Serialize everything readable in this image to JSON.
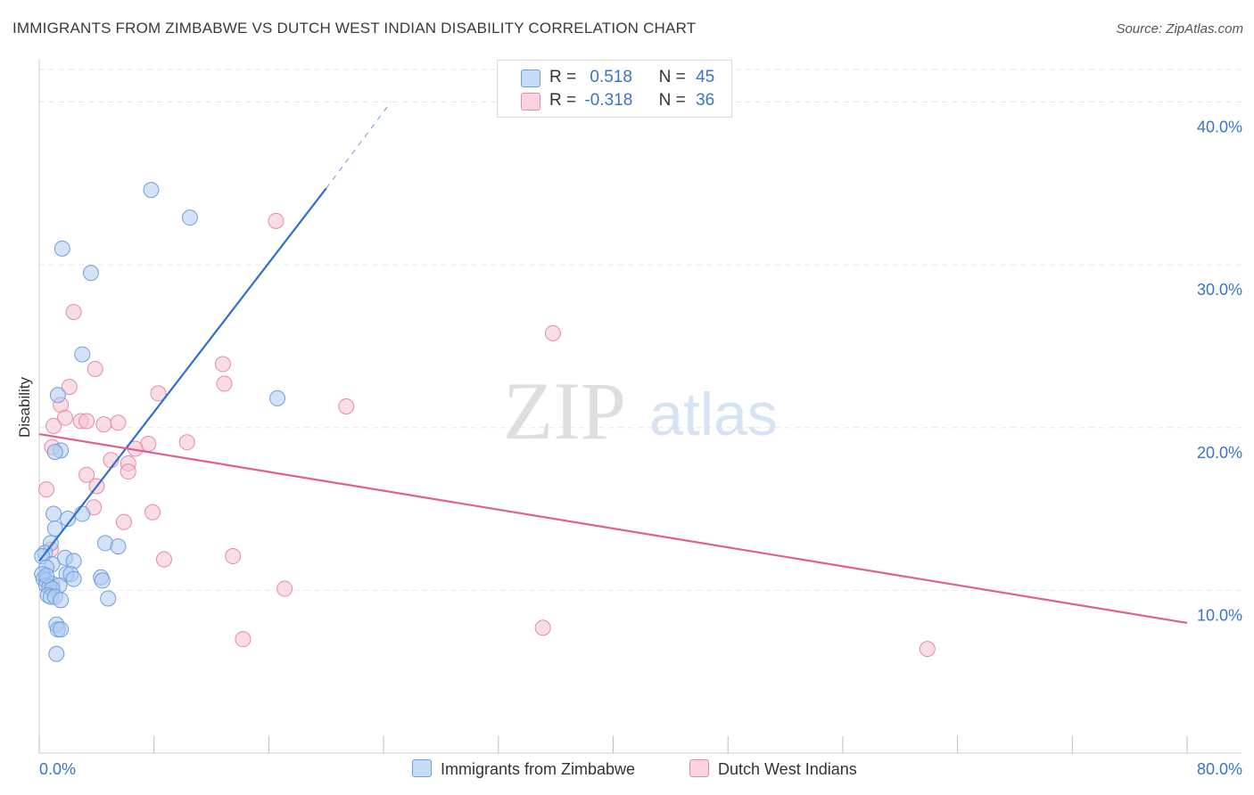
{
  "title": "IMMIGRANTS FROM ZIMBABWE VS DUTCH WEST INDIAN DISABILITY CORRELATION CHART",
  "source": "Source: ZipAtlas.com",
  "watermark": {
    "zip": "ZIP",
    "atlas": "atlas"
  },
  "legend": {
    "r_label": "R =",
    "n_label": "N =",
    "rows": [
      {
        "r": "0.518",
        "n": "45"
      },
      {
        "r": "-0.318",
        "n": "36"
      }
    ]
  },
  "colors": {
    "blue_fill": "#aecbf0",
    "blue_stroke": "#6f9fdc",
    "blue_line": "#2f6fd0",
    "pink_fill": "#f6bfd0",
    "pink_stroke": "#e68aa8",
    "pink_line": "#e0608a",
    "grid": "#e6e6e6",
    "tick_label": "#3a74c4"
  },
  "chart_data": {
    "type": "scatter",
    "title": "IMMIGRANTS FROM ZIMBABWE VS DUTCH WEST INDIAN DISABILITY CORRELATION CHART",
    "xlabel": "",
    "ylabel": "Disability",
    "xlim": [
      0,
      80
    ],
    "ylim": [
      0,
      42
    ],
    "x_tick_labels": [
      "0.0%",
      "80.0%"
    ],
    "y_ticks": [
      10,
      20,
      30,
      40
    ],
    "y_tick_labels": [
      "10.0%",
      "20.0%",
      "30.0%",
      "40.0%"
    ],
    "grid": true,
    "legend_position": "bottom-center",
    "series": [
      {
        "name": "Immigrants from Zimbabwe",
        "r": 0.518,
        "n": 45,
        "trend": {
          "x0": 0,
          "y0": 11.8,
          "x1": 20,
          "y1": 34.7,
          "dashed_to_x": 24.5,
          "dashed_to_y": 40.0
        },
        "points": [
          [
            7.8,
            34.6
          ],
          [
            10.5,
            32.9
          ],
          [
            1.6,
            31.0
          ],
          [
            3.6,
            29.5
          ],
          [
            3.0,
            24.5
          ],
          [
            16.6,
            21.8
          ],
          [
            1.3,
            22.0
          ],
          [
            1.5,
            18.6
          ],
          [
            1.1,
            18.5
          ],
          [
            1.0,
            14.7
          ],
          [
            3.0,
            14.7
          ],
          [
            2.0,
            14.4
          ],
          [
            1.1,
            13.8
          ],
          [
            4.6,
            12.9
          ],
          [
            5.5,
            12.7
          ],
          [
            0.8,
            12.9
          ],
          [
            0.4,
            12.3
          ],
          [
            0.2,
            12.1
          ],
          [
            1.8,
            12.0
          ],
          [
            2.4,
            11.8
          ],
          [
            0.9,
            11.6
          ],
          [
            0.5,
            11.4
          ],
          [
            0.2,
            11.0
          ],
          [
            1.9,
            11.0
          ],
          [
            2.2,
            11.0
          ],
          [
            0.3,
            10.7
          ],
          [
            0.5,
            10.6
          ],
          [
            2.4,
            10.7
          ],
          [
            4.3,
            10.8
          ],
          [
            4.4,
            10.6
          ],
          [
            0.9,
            10.4
          ],
          [
            0.5,
            10.3
          ],
          [
            1.4,
            10.3
          ],
          [
            0.7,
            10.2
          ],
          [
            0.9,
            10.1
          ],
          [
            0.6,
            9.7
          ],
          [
            0.8,
            9.6
          ],
          [
            1.1,
            9.6
          ],
          [
            1.5,
            9.4
          ],
          [
            4.8,
            9.5
          ],
          [
            1.2,
            7.9
          ],
          [
            1.3,
            7.6
          ],
          [
            1.5,
            7.6
          ],
          [
            1.2,
            6.1
          ],
          [
            0.5,
            10.9
          ]
        ]
      },
      {
        "name": "Dutch West Indians",
        "r": -0.318,
        "n": 36,
        "trend": {
          "x0": 0,
          "y0": 19.6,
          "x1": 80,
          "y1": 8.0
        },
        "points": [
          [
            16.5,
            32.7
          ],
          [
            2.4,
            27.1
          ],
          [
            35.8,
            25.8
          ],
          [
            3.9,
            23.6
          ],
          [
            12.8,
            23.9
          ],
          [
            2.1,
            22.5
          ],
          [
            12.9,
            22.7
          ],
          [
            8.3,
            22.1
          ],
          [
            21.4,
            21.3
          ],
          [
            1.5,
            21.4
          ],
          [
            1.8,
            20.6
          ],
          [
            2.9,
            20.4
          ],
          [
            3.3,
            20.4
          ],
          [
            4.5,
            20.2
          ],
          [
            5.5,
            20.3
          ],
          [
            1.0,
            20.1
          ],
          [
            10.3,
            19.1
          ],
          [
            7.6,
            19.0
          ],
          [
            0.9,
            18.8
          ],
          [
            6.7,
            18.7
          ],
          [
            5.0,
            18.0
          ],
          [
            6.2,
            17.8
          ],
          [
            6.2,
            17.3
          ],
          [
            3.3,
            17.1
          ],
          [
            4.0,
            16.4
          ],
          [
            0.5,
            16.2
          ],
          [
            3.8,
            15.1
          ],
          [
            7.9,
            14.8
          ],
          [
            5.9,
            14.2
          ],
          [
            0.8,
            12.5
          ],
          [
            13.5,
            12.1
          ],
          [
            8.7,
            11.9
          ],
          [
            17.1,
            10.1
          ],
          [
            35.1,
            7.7
          ],
          [
            14.2,
            7.0
          ],
          [
            61.9,
            6.4
          ]
        ]
      }
    ]
  }
}
